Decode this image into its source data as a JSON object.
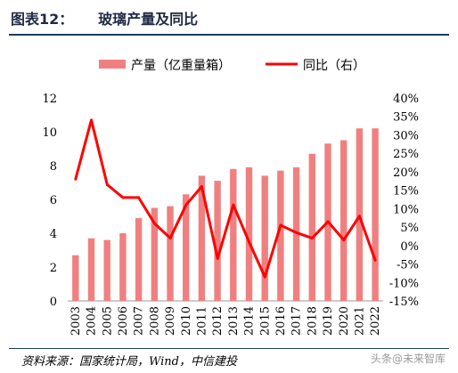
{
  "header": {
    "title": "图表12：     玻璃产量及同比"
  },
  "footer": {
    "source": "资料来源：国家统计局，Wind，中信建投",
    "watermark": "头条@未来智库"
  },
  "chart_data": {
    "type": "bar",
    "categories": [
      "2003",
      "2004",
      "2005",
      "2006",
      "2007",
      "2008",
      "2009",
      "2010",
      "2011",
      "2012",
      "2013",
      "2014",
      "2015",
      "2016",
      "2017",
      "2018",
      "2019",
      "2020",
      "2021",
      "2022"
    ],
    "series": [
      {
        "name": "产量（亿重量箱）",
        "type": "bar",
        "axis": "left",
        "color": "#f08080",
        "values": [
          2.7,
          3.7,
          3.6,
          4.0,
          4.9,
          5.5,
          5.6,
          6.3,
          7.4,
          7.1,
          7.8,
          7.9,
          7.4,
          7.7,
          7.9,
          8.7,
          9.3,
          9.5,
          10.2,
          10.2
        ]
      },
      {
        "name": "同比（右）",
        "type": "line",
        "axis": "right",
        "color": "#ff0000",
        "values": [
          18,
          34,
          16.5,
          13,
          13,
          6,
          2,
          11,
          16,
          -3.5,
          11,
          1,
          -8.5,
          5.5,
          3.5,
          2,
          6.5,
          1.5,
          8,
          -4
        ]
      }
    ],
    "y_left": {
      "min": 0,
      "max": 12,
      "ticks": [
        "0",
        "2",
        "4",
        "6",
        "8",
        "10",
        "12"
      ]
    },
    "y_right": {
      "min": -15,
      "max": 40,
      "ticks": [
        "-15%",
        "-10%",
        "-5%",
        "0%",
        "5%",
        "10%",
        "15%",
        "20%",
        "25%",
        "30%",
        "35%",
        "40%"
      ]
    },
    "grid": false,
    "legend_position": "top"
  }
}
